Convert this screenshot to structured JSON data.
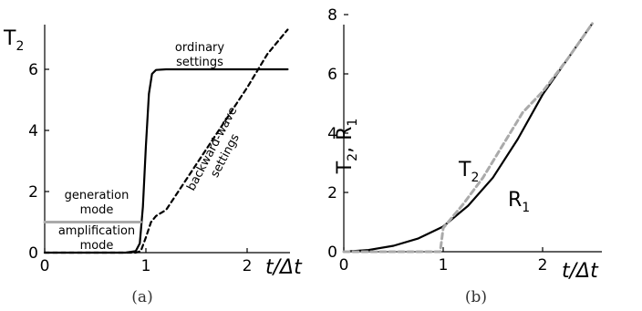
{
  "chart_data": [
    {
      "type": "line",
      "caption": "(a)",
      "y_title_main": "T",
      "y_title_sub": "2",
      "x_title": "t/Δt",
      "xlim": [
        0,
        2.45
      ],
      "ylim": [
        0,
        7.5
      ],
      "x_ticks": [
        "0",
        "1",
        "2"
      ],
      "y_ticks": [
        "0",
        "2",
        "4",
        "6"
      ],
      "annotations": {
        "ordinary_1": "ordinary",
        "ordinary_2": "settings",
        "backward_1": "backward-wave",
        "backward_2": "settings",
        "generation_1": "generation",
        "generation_2": "mode",
        "amplification_1": "amplification",
        "amplification_2": "mode"
      },
      "series": [
        {
          "style": "solid",
          "color": "#000000",
          "x": [
            0,
            0.8,
            0.9,
            0.94,
            0.97,
            1.0,
            1.03,
            1.06,
            1.1,
            1.2,
            1.5,
            2.0,
            2.4
          ],
          "y": [
            0,
            0,
            0.05,
            0.3,
            1.5,
            3.5,
            5.2,
            5.85,
            5.98,
            6.0,
            6.0,
            6.0,
            6.0
          ]
        },
        {
          "style": "dashed",
          "color": "#000000",
          "x": [
            0,
            0.9,
            0.95,
            1.0,
            1.05,
            1.1,
            1.2,
            1.4,
            1.6,
            1.8,
            2.0,
            2.2,
            2.4
          ],
          "y": [
            0,
            0,
            0.05,
            0.5,
            1.0,
            1.2,
            1.4,
            2.4,
            3.4,
            4.4,
            5.4,
            6.5,
            7.3
          ]
        },
        {
          "style": "solid",
          "color": "#aaaaaa",
          "x": [
            0,
            0.9,
            0.95
          ],
          "y": [
            1.0,
            1.0,
            1.0
          ]
        }
      ]
    },
    {
      "type": "line",
      "caption": "(b)",
      "y_title_main": "T",
      "y_title_sub": "2",
      "y_title_sep": ", ",
      "y_title_main2": "R",
      "y_title_sub2": "1",
      "x_title": "t/Δt",
      "xlim": [
        0,
        2.6
      ],
      "ylim": [
        0,
        8.2
      ],
      "x_ticks": [
        "0",
        "1",
        "2"
      ],
      "y_ticks": [
        "0",
        "2",
        "4",
        "6",
        "8"
      ],
      "labels": {
        "t2_main": "T",
        "t2_sub": "2",
        "r1_main": "R",
        "r1_sub": "1"
      },
      "series": [
        {
          "name": "R1",
          "style": "solid",
          "color": "#000000",
          "x": [
            0,
            0.25,
            0.5,
            0.75,
            1.0,
            1.25,
            1.5,
            1.75,
            2.0,
            2.25,
            2.5
          ],
          "y": [
            0,
            0.06,
            0.2,
            0.45,
            0.85,
            1.55,
            2.5,
            3.8,
            5.3,
            6.5,
            7.7
          ]
        },
        {
          "name": "T2",
          "style": "dashed",
          "color": "#aaaaaa",
          "x": [
            0,
            0.9,
            0.97,
            1.0,
            1.1,
            1.2,
            1.4,
            1.6,
            1.8,
            2.0,
            2.25,
            2.5
          ],
          "y": [
            0,
            0,
            0,
            0.8,
            1.2,
            1.6,
            2.5,
            3.6,
            4.7,
            5.4,
            6.5,
            7.7
          ]
        }
      ]
    }
  ]
}
